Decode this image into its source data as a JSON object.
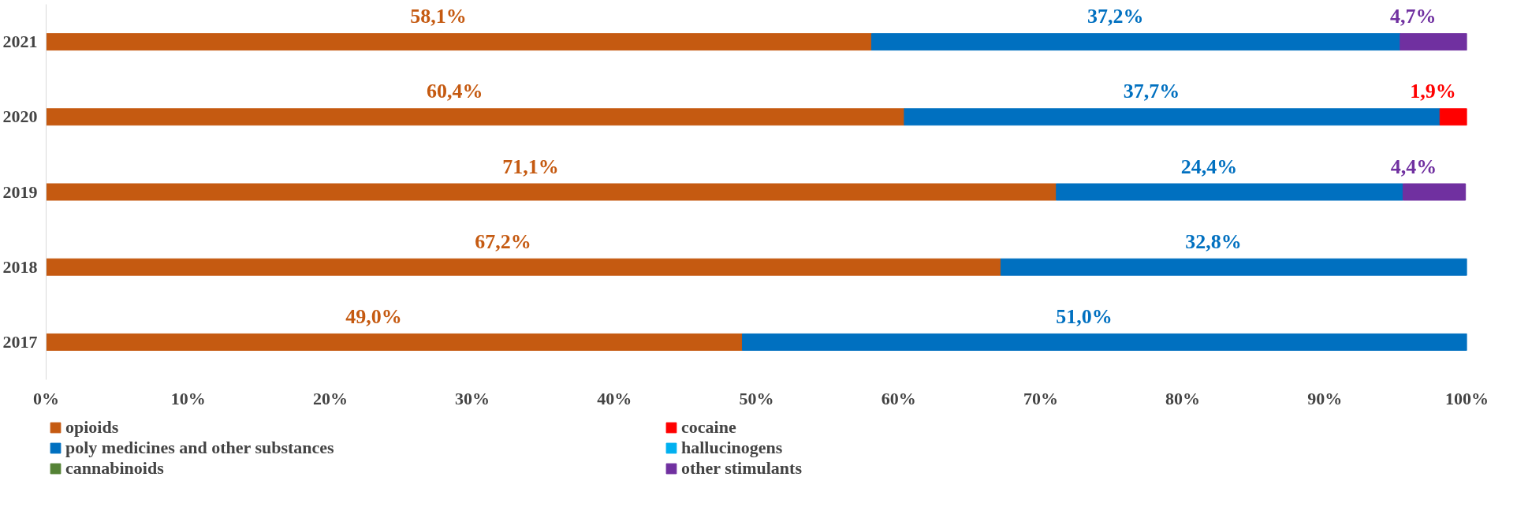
{
  "chart_data": {
    "type": "bar",
    "orientation": "horizontal",
    "stacked": true,
    "categories": [
      "2021",
      "2020",
      "2019",
      "2018",
      "2017"
    ],
    "series": [
      {
        "name": "opioids",
        "color": "#c55a11",
        "values": [
          58.1,
          60.4,
          71.1,
          67.2,
          49.0
        ],
        "value_labels": [
          "58,1%",
          "60,4%",
          "71,1%",
          "67,2%",
          "49,0%"
        ]
      },
      {
        "name": "poly medicines and other substances",
        "color": "#0070c0",
        "values": [
          37.2,
          37.7,
          24.4,
          32.8,
          51.0
        ],
        "value_labels": [
          "37,2%",
          "37,7%",
          "24,4%",
          "32,8%",
          "51,0%"
        ]
      },
      {
        "name": "cannabinoids",
        "color": "#548235",
        "values": [
          null,
          null,
          null,
          null,
          null
        ]
      },
      {
        "name": "cocaine",
        "color": "#ff0000",
        "values": [
          null,
          1.9,
          null,
          null,
          null
        ],
        "value_labels": [
          null,
          "1,9%",
          null,
          null,
          null
        ]
      },
      {
        "name": "hallucinogens",
        "color": "#00b0f0",
        "values": [
          null,
          null,
          null,
          null,
          null
        ]
      },
      {
        "name": "other stimulants",
        "color": "#7030a0",
        "values": [
          4.7,
          null,
          4.4,
          null,
          null
        ],
        "value_labels": [
          "4,7%",
          null,
          "4,4%",
          null,
          null
        ]
      }
    ],
    "xlim": [
      0,
      100
    ],
    "xticks": [
      {
        "value": 0,
        "label": "0%"
      },
      {
        "value": 10,
        "label": "10%"
      },
      {
        "value": 20,
        "label": "20%"
      },
      {
        "value": 30,
        "label": "30%"
      },
      {
        "value": 40,
        "label": "40%"
      },
      {
        "value": 50,
        "label": "50%"
      },
      {
        "value": 60,
        "label": "60%"
      },
      {
        "value": 70,
        "label": "70%"
      },
      {
        "value": 80,
        "label": "80%"
      },
      {
        "value": 90,
        "label": "90%"
      },
      {
        "value": 100,
        "label": "100%"
      }
    ],
    "grid": false,
    "legend": "bottom"
  }
}
